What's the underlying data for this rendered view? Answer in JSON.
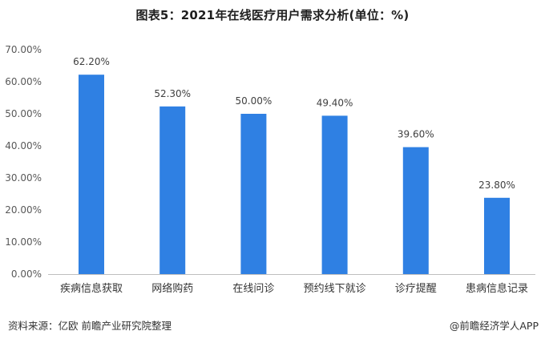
{
  "title": "图表5：2021年在线医疗用户需求分析(单位：%)",
  "footer": {
    "source": "资料来源：亿欧 前瞻产业研究院整理",
    "brand": "@前瞻经济学人APP"
  },
  "colors": {
    "bar": "#2f80e3",
    "axis": "#bfbfbf",
    "grid": "#d9d9d9"
  },
  "chart_data": {
    "type": "bar",
    "title": "图表5：2021年在线医疗用户需求分析(单位：%)",
    "categories": [
      "疾病信息获取",
      "网络购药",
      "在线问诊",
      "预约线下就诊",
      "诊疗提醒",
      "患病信息记录"
    ],
    "values": [
      62.2,
      52.3,
      50.0,
      49.4,
      39.6,
      23.8
    ],
    "value_labels": [
      "62.20%",
      "52.30%",
      "50.00%",
      "49.40%",
      "39.60%",
      "23.80%"
    ],
    "y_ticks": [
      "0.00%",
      "10.00%",
      "20.00%",
      "30.00%",
      "40.00%",
      "50.00%",
      "60.00%",
      "70.00%"
    ],
    "ylim": [
      0,
      70
    ],
    "xlabel": "",
    "ylabel": "",
    "grid": false,
    "legend": "none"
  }
}
